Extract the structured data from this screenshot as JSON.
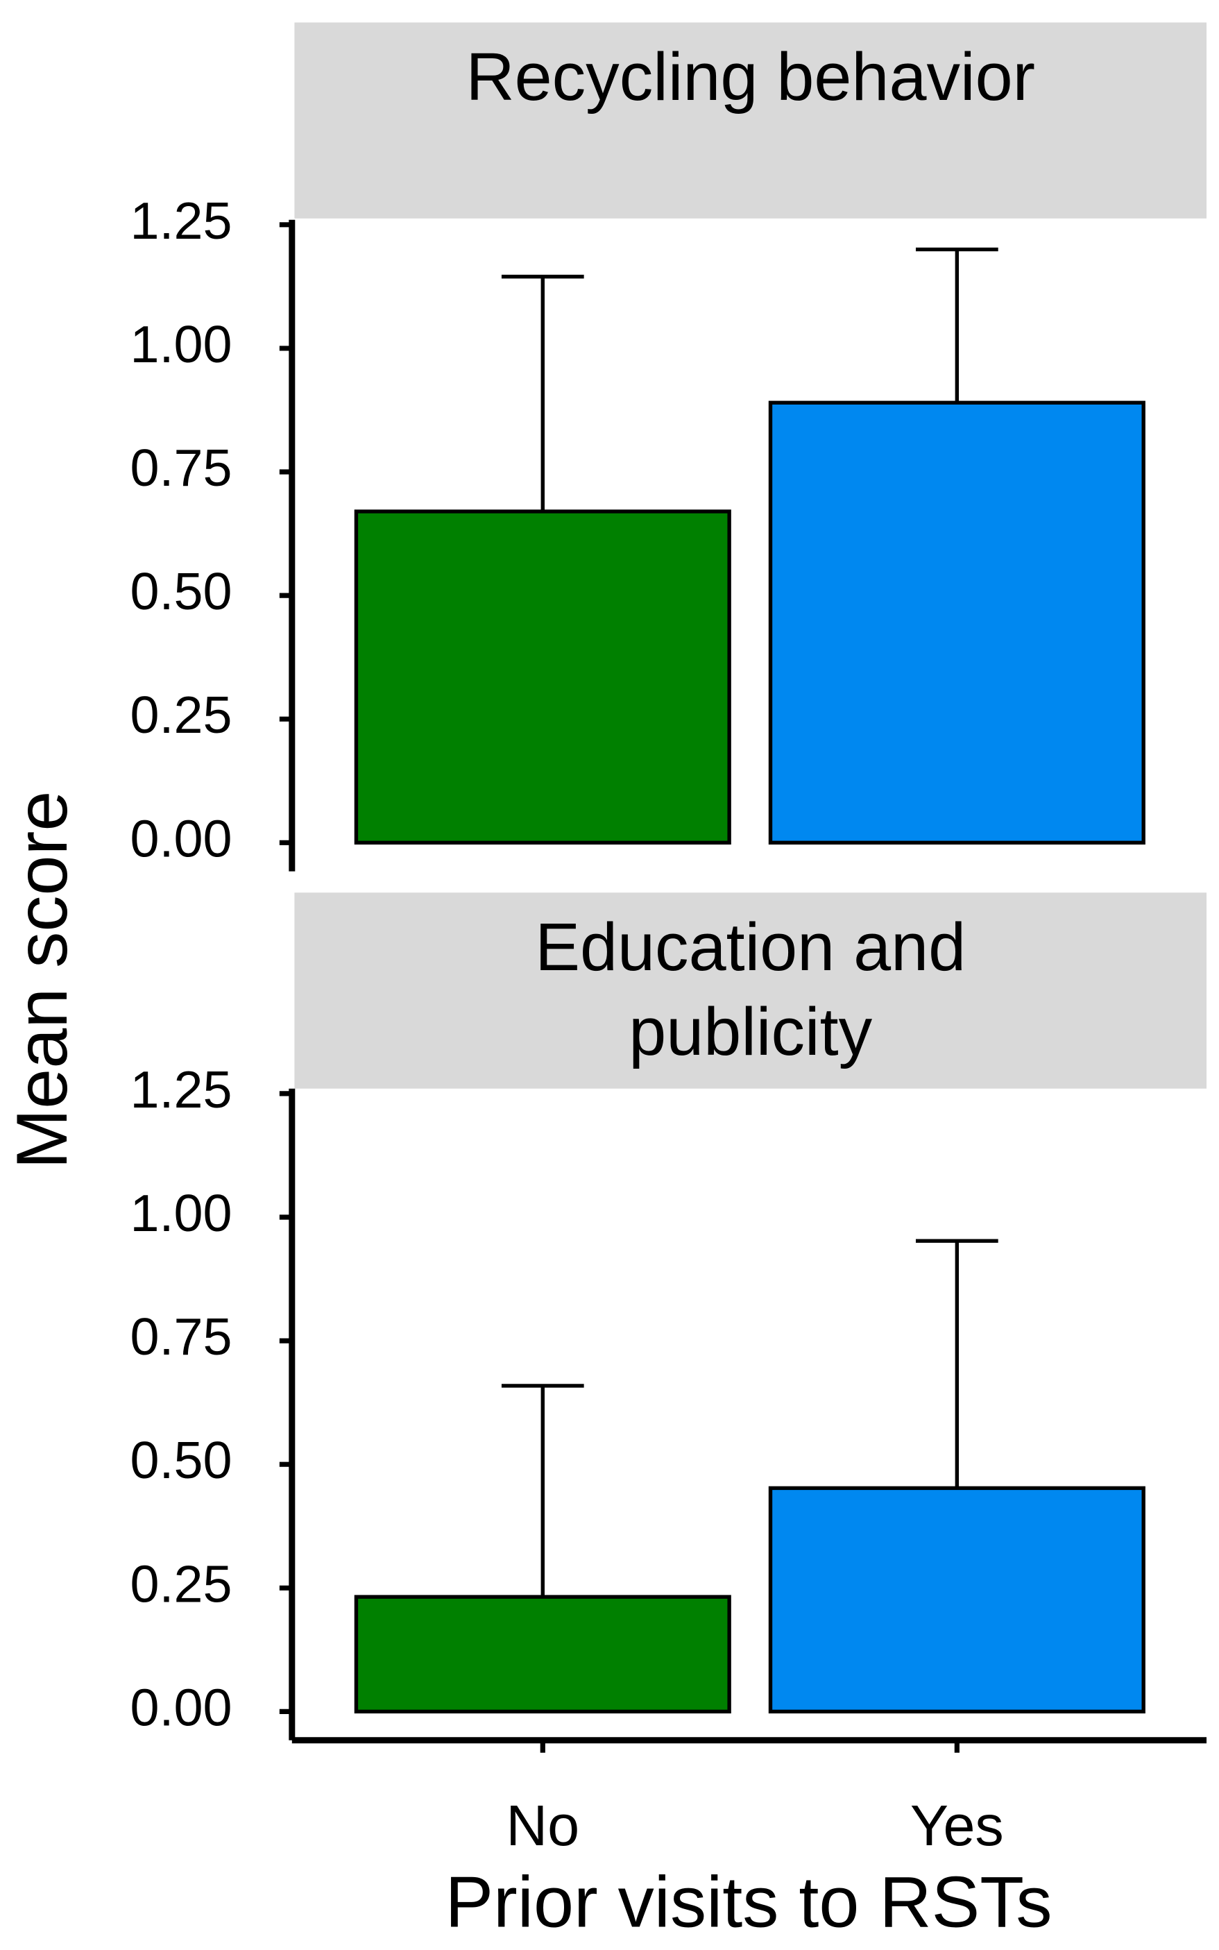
{
  "chart_data": [
    {
      "type": "bar",
      "title": "Recycling behavior",
      "ylabel": "Mean score",
      "categories": [
        "No",
        "Yes"
      ],
      "values": [
        0.67,
        0.89
      ],
      "errors": [
        0.475,
        0.31
      ],
      "colors": [
        "#008000",
        "#0088f0"
      ],
      "ylim": [
        -0.058,
        1.26
      ],
      "yticks": [
        {
          "value": 0,
          "label": "0.00"
        },
        {
          "value": 0.25,
          "label": "0.25"
        },
        {
          "value": 0.5,
          "label": "0.50"
        },
        {
          "value": 0.75,
          "label": "0.75"
        },
        {
          "value": 1,
          "label": "1.00"
        },
        {
          "value": 1.25,
          "label": "1.25"
        }
      ]
    },
    {
      "type": "bar",
      "title": "Education and publicity",
      "xlabel": "Prior visits to RSTs",
      "categories": [
        "No",
        "Yes"
      ],
      "values": [
        0.232,
        0.452
      ],
      "errors": [
        0.427,
        0.5
      ],
      "colors": [
        "#008000",
        "#0088f0"
      ],
      "ylim": [
        -0.058,
        1.26
      ],
      "yticks": [
        {
          "value": 0,
          "label": "0.00"
        },
        {
          "value": 0.25,
          "label": "0.25"
        },
        {
          "value": 0.5,
          "label": "0.50"
        },
        {
          "value": 0.75,
          "label": "0.75"
        },
        {
          "value": 1,
          "label": "1.00"
        },
        {
          "value": 1.25,
          "label": "1.25"
        }
      ]
    }
  ]
}
